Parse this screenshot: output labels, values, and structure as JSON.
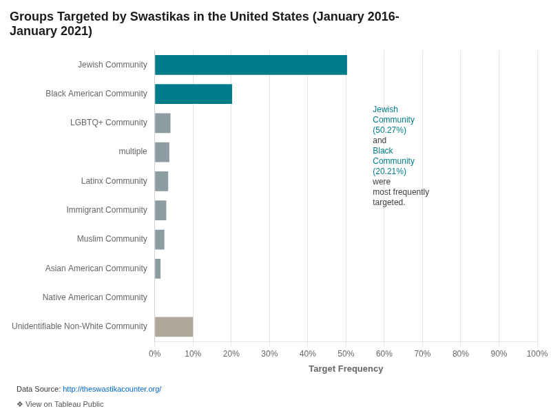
{
  "chart_data": {
    "type": "bar",
    "orientation": "horizontal",
    "title": [
      "Groups Targeted by Swastikas in the United States (January 2016-",
      "January 2021)"
    ],
    "xlabel": "Target Frequency",
    "categories": [
      "Jewish Community",
      "Black American Community",
      "LGBTQ+ Community",
      "multiple",
      "Latinx Community",
      "Immigrant Community",
      "Muslim Community",
      "Asian American Community",
      "Native American Community",
      "Unidentifiable Non-White Community"
    ],
    "values": [
      50.27,
      20.21,
      4.1,
      3.8,
      3.5,
      3.0,
      2.5,
      1.5,
      0.0,
      10.0
    ],
    "colors": [
      "#007B8A",
      "#007B8A",
      "#8C9CA3",
      "#8C9CA3",
      "#8C9CA3",
      "#8C9CA3",
      "#8C9CA3",
      "#8C9CA3",
      "#8C9CA3",
      "#B0A89A"
    ],
    "xlim": [
      0,
      100
    ],
    "xticks": [
      {
        "value": 0,
        "label": "0%"
      },
      {
        "value": 10,
        "label": "10%"
      },
      {
        "value": 20,
        "label": "20%"
      },
      {
        "value": 30,
        "label": "30%"
      },
      {
        "value": 40,
        "label": "40%"
      },
      {
        "value": 50,
        "label": "50%"
      },
      {
        "value": 60,
        "label": "60%"
      },
      {
        "value": 70,
        "label": "70%"
      },
      {
        "value": 80,
        "label": "80%"
      },
      {
        "value": 90,
        "label": "90%"
      },
      {
        "value": 100,
        "label": "100%"
      }
    ],
    "grid": true,
    "annotations": [
      {
        "text": "Jewish",
        "color": "#007B8A"
      },
      {
        "text": "Community",
        "color": "#007B8A"
      },
      {
        "text": "(50.27%)",
        "color": "#007B8A"
      },
      {
        "text": "and",
        "color": "#404040"
      },
      {
        "text": "Black",
        "color": "#007B8A"
      },
      {
        "text": "Community",
        "color": "#007B8A"
      },
      {
        "text": "(20.21%)",
        "color": "#007B8A"
      },
      {
        "text": "were",
        "color": "#404040"
      },
      {
        "text": "most frequently",
        "color": "#404040"
      },
      {
        "text": "targeted.",
        "color": "#404040"
      }
    ],
    "source": [
      {
        "text": "Data Source: ",
        "color": "#333333"
      },
      {
        "text": "http://theswastikacounter.org/",
        "color": "#0066CC"
      }
    ],
    "footer": {
      "text": "❖ View on Tableau Public",
      "color": "#555555"
    }
  }
}
